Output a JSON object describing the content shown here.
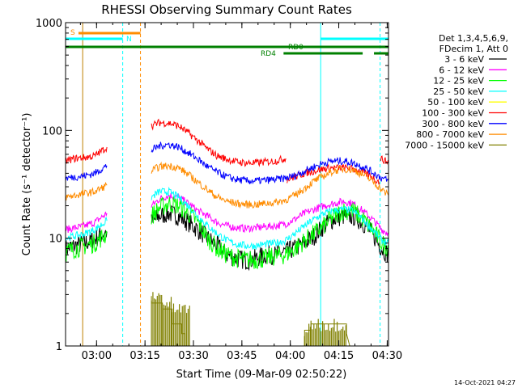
{
  "chart_data": {
    "type": "line",
    "title": "RHESSI Observing Summary Count Rates",
    "xlabel": "Start Time (09-Mar-09 02:50:22)",
    "ylabel": "Count Rate (s⁻¹ detector⁻¹)",
    "y_scale": "log",
    "ylim": [
      1,
      1000
    ],
    "xlim_minutes": [
      0,
      100
    ],
    "x_ticks": [
      {
        "label": "03:00",
        "minute": 9.6
      },
      {
        "label": "03:15",
        "minute": 24.6
      },
      {
        "label": "03:30",
        "minute": 39.6
      },
      {
        "label": "03:45",
        "minute": 54.6
      },
      {
        "label": "04:00",
        "minute": 69.6
      },
      {
        "label": "04:15",
        "minute": 84.6
      },
      {
        "label": "04:30",
        "minute": 99.6
      }
    ],
    "y_ticks": [
      "1",
      "10",
      "100",
      "1000"
    ],
    "legend_header": [
      "Det 1,3,4,5,6,9,",
      "FDecim 1, Att 0"
    ],
    "legend_position": "right",
    "series": [
      {
        "name": "3 - 6 keV",
        "color": "#000000",
        "x": [
          0,
          3,
          6,
          9,
          12.8,
          26.6,
          29,
          32,
          35,
          38,
          41,
          44,
          47,
          50,
          53,
          56,
          59,
          62,
          65,
          68,
          71,
          74,
          77,
          80,
          83,
          86,
          89,
          92,
          95,
          98,
          100
        ],
        "y": [
          8,
          8.5,
          9,
          9.8,
          11.5,
          14,
          16,
          17,
          16,
          14,
          12,
          10,
          8.5,
          7,
          6.5,
          6.2,
          6.5,
          7,
          7,
          7.5,
          8,
          9,
          10.5,
          13,
          15,
          16,
          16,
          14,
          11,
          8,
          7
        ]
      },
      {
        "name": "6 - 12 keV",
        "color": "#ff00ff",
        "x": [
          0,
          3,
          6,
          9,
          12.8,
          26.6,
          29,
          32,
          35,
          38,
          41,
          44,
          47,
          50,
          53,
          56,
          59,
          62,
          65,
          68,
          71,
          74,
          77,
          80,
          83,
          86,
          89,
          92,
          95,
          98,
          100
        ],
        "y": [
          12,
          12.5,
          13,
          14,
          17,
          20,
          23,
          25,
          24,
          21,
          18,
          16,
          14,
          13,
          12.5,
          12.3,
          12.5,
          12.8,
          13,
          13.5,
          15,
          17,
          18.5,
          20,
          21,
          22,
          21,
          18,
          15,
          12,
          11
        ]
      },
      {
        "name": "12 - 25 keV",
        "color": "#00ff00",
        "x": [
          0,
          3,
          6,
          9,
          12.8,
          26.6,
          29,
          32,
          35,
          38,
          41,
          44,
          47,
          50,
          53,
          56,
          59,
          62,
          65,
          68,
          71,
          74,
          77,
          80,
          83,
          86,
          89,
          92,
          95,
          98,
          100
        ],
        "y": [
          7.5,
          8,
          8.5,
          9,
          11,
          16,
          19,
          21,
          20,
          17,
          14,
          10,
          8,
          7,
          6.5,
          6.3,
          6.3,
          6.5,
          6.8,
          7,
          8,
          9.5,
          11,
          13,
          16,
          18,
          18,
          15,
          12,
          9,
          8
        ]
      },
      {
        "name": "25 - 50 keV",
        "color": "#00ffff",
        "x": [
          0,
          3,
          6,
          9,
          12.8,
          26.6,
          29,
          32,
          35,
          38,
          41,
          44,
          47,
          50,
          53,
          56,
          59,
          62,
          65,
          68,
          71,
          74,
          77,
          80,
          83,
          86,
          89,
          92,
          95,
          98,
          100
        ],
        "y": [
          10,
          10.5,
          11,
          12,
          14.5,
          24,
          27,
          27,
          24,
          20,
          16,
          13,
          11,
          9.5,
          8.8,
          8.5,
          8.5,
          8.8,
          9,
          9.5,
          11,
          13,
          15,
          17,
          18,
          18.5,
          18,
          15,
          12,
          9.5,
          9
        ]
      },
      {
        "name": "50 - 100 keV",
        "color": "#ffff00",
        "x": [
          26.6,
          32,
          38,
          44,
          50,
          56,
          62,
          68,
          74,
          80,
          86,
          92,
          100
        ],
        "y": [
          20,
          19,
          17,
          14,
          12,
          11.5,
          11.5,
          12,
          13,
          15,
          16,
          14,
          11
        ]
      },
      {
        "name": "100 - 300 keV",
        "color": "#ff0000",
        "x": [
          0,
          3,
          6,
          9,
          12.8,
          26.6,
          29,
          32,
          35,
          38,
          41,
          44,
          47,
          50,
          53,
          56,
          59,
          62,
          65,
          68.2,
          68.6,
          71,
          74,
          77,
          80,
          83,
          86,
          89,
          92,
          95,
          97.2,
          97.6,
          99,
          100
        ],
        "y": [
          52,
          55,
          56,
          58,
          70,
          110,
          118,
          117,
          110,
          95,
          80,
          67,
          58,
          54,
          51,
          50,
          50,
          51,
          52,
          55,
          35,
          37,
          40,
          42,
          44,
          45,
          45,
          44,
          41,
          37,
          33,
          55,
          52,
          50
        ]
      },
      {
        "name": "300 - 800 keV",
        "color": "#0000ff",
        "x": [
          0,
          3,
          6,
          9,
          12.8,
          26.6,
          29,
          32,
          35,
          38,
          41,
          44,
          47,
          50,
          53,
          56,
          59,
          62,
          65,
          68,
          71,
          74,
          77,
          80,
          83,
          86,
          89,
          92,
          95,
          98,
          100
        ],
        "y": [
          36,
          37,
          38,
          40,
          47,
          65,
          72,
          74,
          70,
          62,
          54,
          46,
          41,
          37,
          35,
          34,
          34,
          34.5,
          35,
          36,
          38,
          42,
          46,
          50,
          52,
          52,
          50,
          46,
          41,
          36,
          34
        ]
      },
      {
        "name": "800 - 7000 keV",
        "color": "#ff8c00",
        "x": [
          0,
          3,
          6,
          9,
          12.8,
          26.6,
          29,
          32,
          35,
          38,
          41,
          44,
          47,
          50,
          53,
          56,
          59,
          62,
          65,
          68,
          71,
          74,
          77,
          80,
          83,
          86,
          89,
          92,
          95,
          98,
          100
        ],
        "y": [
          24,
          25,
          26,
          27,
          31,
          42,
          46,
          47,
          45,
          39,
          33,
          28,
          24,
          22,
          21,
          20.5,
          20.5,
          21,
          21.5,
          22.5,
          25,
          29,
          34,
          38,
          42,
          44,
          43,
          39,
          34,
          28,
          25
        ]
      },
      {
        "name": "7000 - 15000 keV",
        "color": "#808000",
        "x": [
          26.6,
          26.6,
          30,
          30,
          33,
          33,
          36,
          36,
          37,
          37,
          38.5,
          38.5,
          74,
          74,
          76,
          76,
          87,
          87,
          88
        ],
        "y": [
          2.9,
          2.5,
          2.5,
          2.2,
          2.2,
          1.6,
          1.6,
          1.3,
          1.3,
          1,
          1,
          1,
          1,
          1.4,
          1.4,
          1.6,
          1.6,
          1.3,
          1
        ]
      }
    ]
  },
  "overlays": {
    "s_label": "S",
    "n_label": "N",
    "rd0_label": "RD0",
    "rd4_label": "RD4",
    "s_bar": {
      "color": "#ff8c00",
      "from_min": 4,
      "to_min": 23.2
    },
    "n_bars": [
      {
        "from_min": 0,
        "to_min": 17.7
      },
      {
        "from_min": 79,
        "to_min": 100
      }
    ],
    "n_color": "#00ffff",
    "rd0_bars": [
      {
        "from_min": 0,
        "to_min": 100
      }
    ],
    "rd4_bars": [
      {
        "from_min": 67.5,
        "to_min": 92
      },
      {
        "from_min": 95.5,
        "to_min": 100
      }
    ],
    "rd_color": "#008000",
    "vlines": [
      {
        "min": 5.3,
        "color": "#c08000",
        "style": "solid"
      },
      {
        "min": 17.7,
        "color": "#00ffff",
        "style": "dashed"
      },
      {
        "min": 23.2,
        "color": "#ff8c00",
        "style": "dashed"
      },
      {
        "min": 79,
        "color": "#00ffff",
        "style": "solid"
      },
      {
        "min": 97.4,
        "color": "#00ffff",
        "style": "dashed"
      }
    ]
  },
  "footer": {
    "date": "14-Oct-2021 04:27"
  }
}
